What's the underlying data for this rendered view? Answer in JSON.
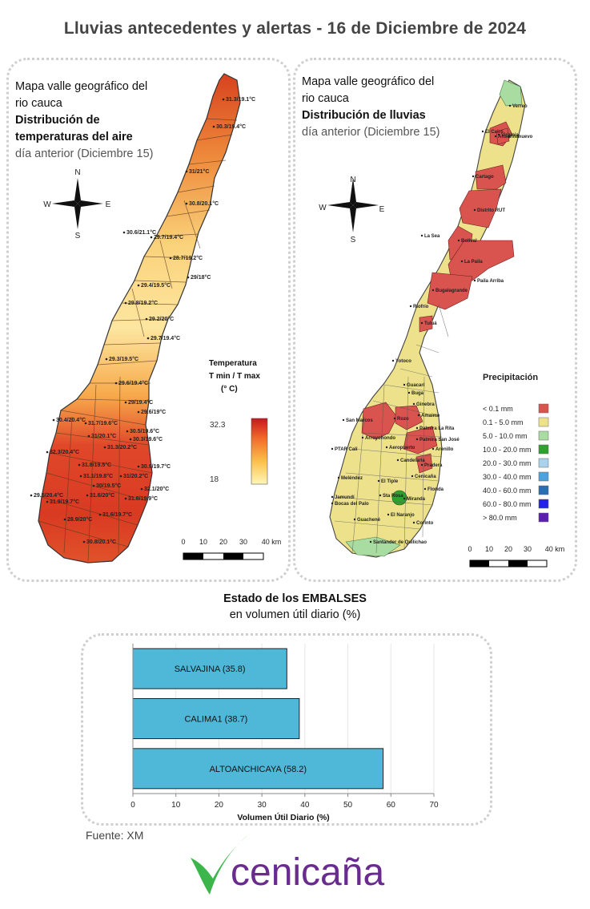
{
  "header": {
    "title": "Lluvias antecedentes y alertas - 16 de Diciembre de 2024"
  },
  "temp_map": {
    "title_line1": "Mapa valle geográfico del",
    "title_line2": "rio cauca",
    "title_bold1": "Distribución de",
    "title_bold2": "temperaturas del aire",
    "subtitle": "día anterior (Diciembre 15)",
    "compass": {
      "n": "N",
      "s": "S",
      "e": "E",
      "w": "W"
    },
    "legend_title_1": "Temperatura",
    "legend_title_2": "T min / T max",
    "legend_title_3": "(° C)",
    "legend_max": "32.3",
    "legend_min": "18",
    "scale_labels": [
      "0",
      "10",
      "20",
      "30",
      "40 km"
    ],
    "station_labels": [
      "31.3/19.1°C",
      "30.3/19.4°C",
      "31/21°C",
      "30.8/20.1°C",
      "30.6/21.1°C",
      "29.7/19.4°C",
      "28.7/19.2°C",
      "29/18°C",
      "29.4/19.5°C",
      "29.8/19.2°C",
      "29.2/20°C",
      "29.7/19.4°C",
      "29.3/19.5°C",
      "29.6/19.4°C",
      "29/19.4°C",
      "29.6/19°C",
      "30.4/20.4°C",
      "31.7/19.6°C",
      "30.5/19.6°C",
      "31/20.1°C",
      "30.3/19.6°C",
      "31.3/20.2°C",
      "32.3/20.4°C",
      "31.8/19.5°C",
      "30.9/19.7°C",
      "31.1/19.8°C",
      "31/20.2°C",
      "30/19.5°C",
      "32.1/20°C",
      "29.5/20.4°C",
      "31.6/20°C",
      "31.8/19.9°C",
      "31.9/19.7°C",
      "31.6/19.7°C",
      "28.9/20°C",
      "30.8/20.1°C"
    ]
  },
  "rain_map": {
    "title_line1": "Mapa valle geográfico del",
    "title_line2": "rio cauca",
    "title_bold": "Distribución de lluvias",
    "subtitle": "día anterior (Diciembre 15)",
    "compass": {
      "n": "N",
      "s": "S",
      "e": "E",
      "w": "W"
    },
    "legend_title": "Precipitación",
    "legend": [
      {
        "label": "< 0.1 mm",
        "color": "#d9534f"
      },
      {
        "label": "0.1 - 5.0 mm",
        "color": "#ede28b"
      },
      {
        "label": "5.0 - 10.0 mm",
        "color": "#a8dca0"
      },
      {
        "label": "10.0 - 20.0 mm",
        "color": "#2fa12f"
      },
      {
        "label": "20.0 - 30.0 mm",
        "color": "#a9d3ea"
      },
      {
        "label": "30.0 - 40.0 mm",
        "color": "#4aa3dc"
      },
      {
        "label": "40.0 - 60.0 mm",
        "color": "#2a6fb5"
      },
      {
        "label": "60.0 - 80.0 mm",
        "color": "#2323e6"
      },
      {
        "label": "> 80.0 mm",
        "color": "#5a1fb0"
      }
    ],
    "scale_labels": [
      "0",
      "10",
      "20",
      "30",
      "40 km"
    ],
    "place_labels": [
      "El Cairo",
      "Ansermanuevo",
      "Cartago",
      "Distrito RUT",
      "La Sea",
      "Bolival",
      "La Paila",
      "Paila Arriba",
      "Bugalagrande",
      "Riofrío",
      "Tuluá",
      "Yotoco",
      "Guacarí",
      "Buga",
      "Ginebra",
      "Amaime",
      "San Marcos",
      "Rozo",
      "Palmira La Rita",
      "Arroyohondo",
      "Palmira San José",
      "PTAR Cali",
      "Aeropuerto",
      "Arenillo",
      "Candelaria",
      "Pradera",
      "Meléndez",
      "El Tiple",
      "Cenicaña",
      "Florida",
      "Jamundí",
      "Bocas del Palo",
      "Sta Rosa",
      "Miranda",
      "Guachené",
      "El Naranjo",
      "Corinto",
      "Santander de Quilichao",
      "Virginia",
      "Verreo"
    ]
  },
  "chart_data": {
    "type": "bar",
    "orientation": "horizontal",
    "title": "Estado de los EMBALSES",
    "subtitle": "en volumen útil diario (%)",
    "categories": [
      "SALVAJINA (35.8)",
      "CALIMA1 (38.7)",
      "ALTOANCHICAYA (58.2)"
    ],
    "values": [
      35.8,
      38.7,
      58.2
    ],
    "xlabel": "Volumen Útil Diario (%)",
    "xlim": [
      0,
      70
    ],
    "xticks": [
      0,
      10,
      20,
      30,
      40,
      50,
      60,
      70
    ],
    "grid": true,
    "bar_color": "#4fb8d8"
  },
  "footer": {
    "source": "Fuente: XM",
    "logo_text": "cenicaña",
    "logo_color": "#6a2b8e",
    "logo_accent": "#3cb64a"
  }
}
